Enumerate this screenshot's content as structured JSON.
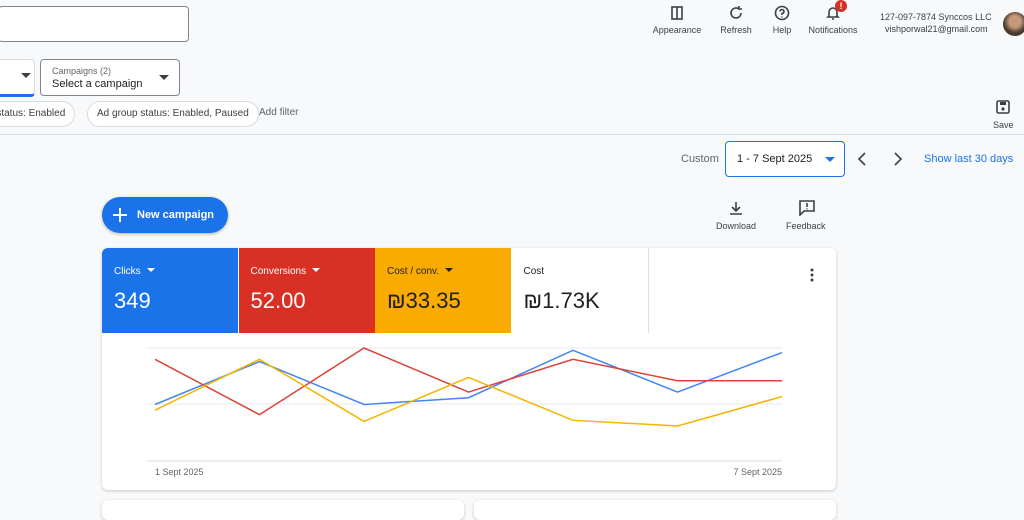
{
  "header": {
    "toolbar": [
      "Appearance",
      "Refresh",
      "Help",
      "Notifications"
    ],
    "notification_badge": "!",
    "account": {
      "name": "127-097-7874 Synccos LLC",
      "email": "vishporwal21@gmail.com"
    }
  },
  "filters": {
    "campaigns_label": "Campaigns (2)",
    "campaigns_value": "Select a campaign",
    "chips": [
      "n status: Enabled",
      "Ad group status: Enabled, Paused"
    ],
    "add_filter": "Add filter",
    "save": "Save"
  },
  "date": {
    "mode": "Custom",
    "range": "1 - 7 Sept 2025",
    "shortcut": "Show last 30 days"
  },
  "actions": {
    "new_campaign": "New campaign",
    "download": "Download",
    "feedback": "Feedback"
  },
  "metrics": [
    {
      "label": "Clicks",
      "value": "349",
      "color": "#1a73e8"
    },
    {
      "label": "Conversions",
      "value": "52.00",
      "color": "#d93025"
    },
    {
      "label": "Cost / conv.",
      "value": "₪33.35",
      "color": "#f9ab00"
    },
    {
      "label": "Cost",
      "value": "₪1.73K"
    }
  ],
  "chart": {
    "type": "line",
    "x": [
      "1 Sept 2025",
      null,
      null,
      null,
      null,
      null,
      "7 Sept 2025"
    ],
    "ylim": [
      0,
      100
    ],
    "series": [
      {
        "color": "#4285f4",
        "values": [
          50,
          88,
          50,
          56,
          98,
          61,
          96
        ]
      },
      {
        "color": "#db4437",
        "values": [
          90,
          41,
          100,
          61,
          90,
          71,
          71
        ]
      },
      {
        "color": "#f4b400",
        "values": [
          45,
          90,
          35,
          74,
          36,
          31,
          57
        ]
      }
    ]
  }
}
